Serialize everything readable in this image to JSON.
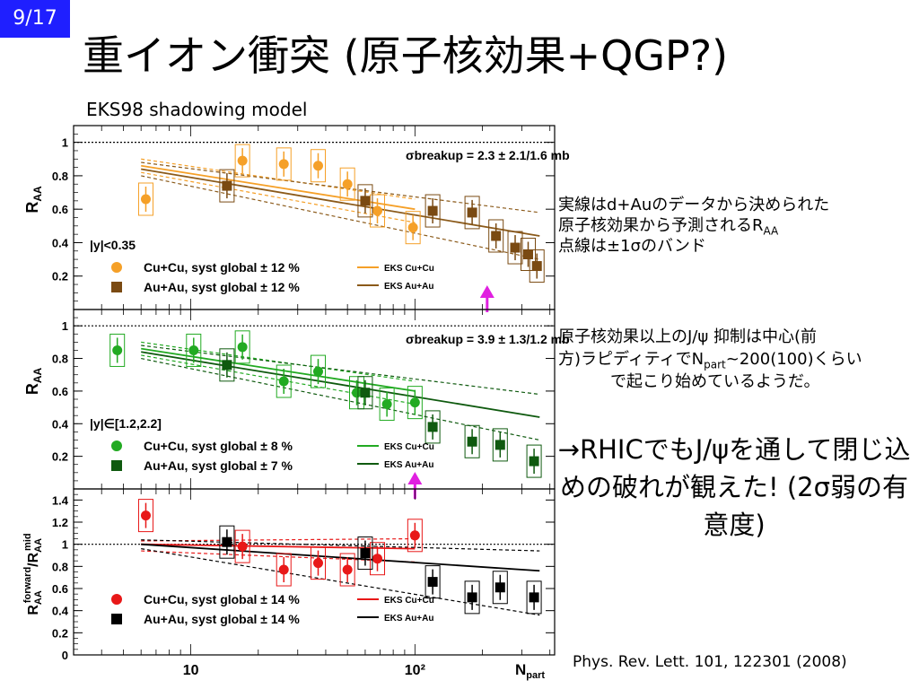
{
  "page_number": "9/17",
  "title": "重イオン衝突 (原子核効果+QGP?)",
  "subtitle": "EKS98 shadowing model",
  "notes": {
    "line1": "実線はd+Auのデータから決められた",
    "line2_pre": "原子核効果から予測されるR",
    "line2_sub": "AA",
    "line3": "点線は±1σのバンド",
    "jpsi1": "原子核効果以上のJ/ψ 抑制は中心(前",
    "jpsi2_pre": "方)ラピディティでN",
    "jpsi2_sub": "part",
    "jpsi2_post": "~200(100)くらい",
    "jpsi3": "で起こり始めているようだ。",
    "conclusion": "→RHICでもJ/ψを通して閉じ込めの破れが観えた! (2σ弱の有意度)"
  },
  "reference": "Phys. Rev. Lett. 101, 122301 (2008)",
  "chart_data": [
    {
      "type": "scatter",
      "panel": "top",
      "ylabel": "R_AA",
      "x_scale": "log",
      "xlim": [
        3,
        420
      ],
      "ylim": [
        0,
        1.1
      ],
      "yticks": [
        "0.2",
        "0.4",
        "0.6",
        "0.8",
        "1"
      ],
      "rapidity_label": "|y|<0.35",
      "sigma_text": "σbreakup = 2.3 ± 2.1/1.6 mb",
      "legend": [
        "Cu+Cu, syst global ± 12 %",
        "Au+Au, syst global ± 12 %",
        "EKS Cu+Cu",
        "EKS Au+Au"
      ],
      "colors": {
        "cu": "#f5a028",
        "au": "#7a4a12",
        "cu_line": "#f5a028",
        "au_line": "#8b5a1a"
      },
      "arrow_x": 210,
      "series": [
        {
          "name": "Cu+Cu",
          "x": [
            6.3,
            17,
            26,
            37,
            50,
            68,
            98
          ],
          "y": [
            0.66,
            0.89,
            0.87,
            0.86,
            0.75,
            0.59,
            0.49
          ]
        },
        {
          "name": "Au+Au",
          "x": [
            14.5,
            60,
            120,
            180,
            230,
            280,
            320
          ],
          "y": [
            0.74,
            0.65,
            0.59,
            0.58,
            0.44,
            0.37,
            0.33
          ]
        },
        {
          "name": "Au+Au low",
          "x": [
            350
          ],
          "y": [
            0.26
          ]
        }
      ]
    },
    {
      "type": "scatter",
      "panel": "middle",
      "ylabel": "R_AA",
      "x_scale": "log",
      "xlim": [
        3,
        420
      ],
      "ylim": [
        0,
        1.1
      ],
      "yticks": [
        "0.2",
        "0.4",
        "0.6",
        "0.8",
        "1"
      ],
      "rapidity_label": "|y|∈[1.2,2.2]",
      "sigma_text": "σbreakup = 3.9 ± 1.3/1.2 mb",
      "legend": [
        "Cu+Cu, syst global ± 8 %",
        "Au+Au, syst global ± 7 %",
        "EKS Cu+Cu",
        "EKS Au+Au"
      ],
      "colors": {
        "cu": "#22aa22",
        "au": "#0f5a0f"
      },
      "arrow_x": 100,
      "series": [
        {
          "name": "Cu+Cu",
          "x": [
            4.7,
            10.3,
            17,
            26,
            37,
            55,
            75,
            100
          ],
          "y": [
            0.85,
            0.85,
            0.87,
            0.66,
            0.72,
            0.59,
            0.52,
            0.53
          ]
        },
        {
          "name": "Au+Au",
          "x": [
            14.5,
            60,
            120,
            180,
            240,
            340
          ],
          "y": [
            0.76,
            0.59,
            0.38,
            0.29,
            0.27,
            0.17
          ]
        }
      ]
    },
    {
      "type": "scatter",
      "panel": "bottom",
      "ylabel": "R_AA forward / R_AA mid",
      "xlabel": "N_part",
      "x_scale": "log",
      "xlim": [
        3,
        420
      ],
      "ylim": [
        0,
        1.5
      ],
      "xticks": [
        "10",
        "10²"
      ],
      "yticks": [
        "0",
        "0.2",
        "0.4",
        "0.6",
        "0.8",
        "1",
        "1.2",
        "1.4"
      ],
      "legend": [
        "Cu+Cu, syst global ± 14 %",
        "Au+Au, syst global ± 14 %",
        "EKS Cu+Cu",
        "EKS Au+Au"
      ],
      "colors": {
        "cu": "#e81818",
        "au": "#000000"
      },
      "series": [
        {
          "name": "Cu+Cu",
          "x": [
            6.3,
            17,
            26,
            37,
            50,
            68,
            100
          ],
          "y": [
            1.26,
            0.98,
            0.77,
            0.83,
            0.77,
            0.87,
            1.08
          ]
        },
        {
          "name": "Au+Au",
          "x": [
            14.5,
            60,
            120,
            180,
            240,
            340
          ],
          "y": [
            1.02,
            0.92,
            0.66,
            0.52,
            0.61,
            0.52
          ]
        }
      ]
    }
  ]
}
